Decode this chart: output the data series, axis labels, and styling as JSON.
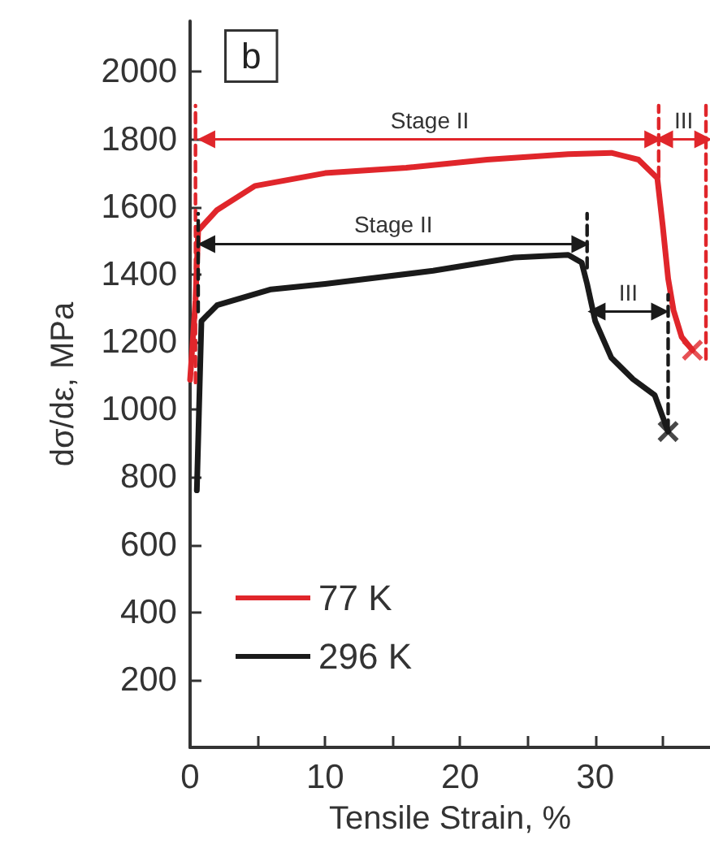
{
  "chart_data": {
    "type": "line",
    "xlabel": "Tensile Strain, %",
    "ylabel": "dσ/dε, MPa",
    "xlim": [
      0,
      38.5
    ],
    "ylim": [
      0,
      2150
    ],
    "xticks": [
      0,
      {
        "value": 5,
        "label": null
      },
      10,
      {
        "value": 15,
        "label": null
      },
      20,
      {
        "value": 25,
        "label": null
      },
      30,
      {
        "value": 35,
        "label": null
      }
    ],
    "yticks": [
      200,
      400,
      600,
      800,
      1000,
      1200,
      1400,
      1600,
      1800,
      2000
    ],
    "grid": false,
    "legend": "bottom left",
    "marker": "none",
    "line_style": "solid",
    "series": [
      {
        "name": "77 K",
        "color": "#e0262b",
        "x": [
          0,
          0.4,
          0.6,
          2.0,
          4.8,
          10,
          16,
          22,
          28,
          31.2,
          33.2,
          34.6,
          35,
          35.4,
          35.8,
          36.4,
          37.2
        ],
        "values": [
          1088,
          1323,
          1530,
          1591,
          1662,
          1700,
          1716,
          1740,
          1756,
          1760,
          1740,
          1685,
          1544,
          1388,
          1294,
          1215,
          1176
        ]
      },
      {
        "name": "296 K",
        "color": "#1a1a1a",
        "x": [
          0.5,
          0.84,
          2,
          6,
          10,
          18,
          24,
          28,
          29,
          29.4,
          30,
          31.2,
          32.8,
          34.4,
          35.4
        ],
        "values": [
          761,
          1262,
          1309,
          1356,
          1372,
          1411,
          1450,
          1458,
          1435,
          1372,
          1262,
          1153,
          1090,
          1043,
          935
        ]
      },
      {
        "type": "scatter",
        "marker": "cross",
        "color": "#e0262b",
        "x": [
          37.2
        ],
        "values": [
          1176
        ]
      },
      {
        "type": "scatter",
        "marker": "cross",
        "color": "#1a1a1a",
        "x": [
          35.4
        ],
        "values": [
          935
        ]
      },
      {
        "line_style": "dashed",
        "color": "#e0262b",
        "x": [
          0.4,
          0.4
        ],
        "values": [
          1080,
          1900
        ]
      },
      {
        "line_style": "dashed",
        "color": "#e0262b",
        "x": [
          34.7,
          34.7
        ],
        "values": [
          1640,
          1900
        ]
      },
      {
        "line_style": "dashed",
        "color": "#e0262b",
        "x": [
          38.2,
          38.2
        ],
        "values": [
          1150,
          1900
        ]
      },
      {
        "line_style": "dashed",
        "color": "#1a1a1a",
        "x": [
          0.6,
          0.6
        ],
        "values": [
          1290,
          1580
        ]
      },
      {
        "line_style": "dashed",
        "color": "#1a1a1a",
        "x": [
          29.4,
          29.4
        ],
        "values": [
          1420,
          1580
        ]
      },
      {
        "line_style": "dashed",
        "color": "#1a1a1a",
        "x": [
          35.4,
          35.4
        ],
        "values": [
          940,
          1340
        ]
      },
      {
        "marker": "triangle",
        "color": "#e0262b",
        "x": [
          1.2,
          34.3
        ],
        "values": [
          1800,
          1800
        ]
      },
      {
        "marker": "triangle",
        "color": "#e0262b",
        "x": [
          35.1,
          38.0
        ],
        "values": [
          1800,
          1800
        ]
      },
      {
        "marker": "triangle",
        "color": "#1a1a1a",
        "x": [
          1.2,
          28.9
        ],
        "values": [
          1490,
          1490
        ]
      },
      {
        "marker": "triangle",
        "color": "#1a1a1a",
        "x": [
          30.1,
          34.8
        ],
        "values": [
          1290,
          1290
        ]
      }
    ],
    "annotations": [
      "b",
      "Stage II",
      "III",
      "Stage II",
      "III"
    ]
  }
}
